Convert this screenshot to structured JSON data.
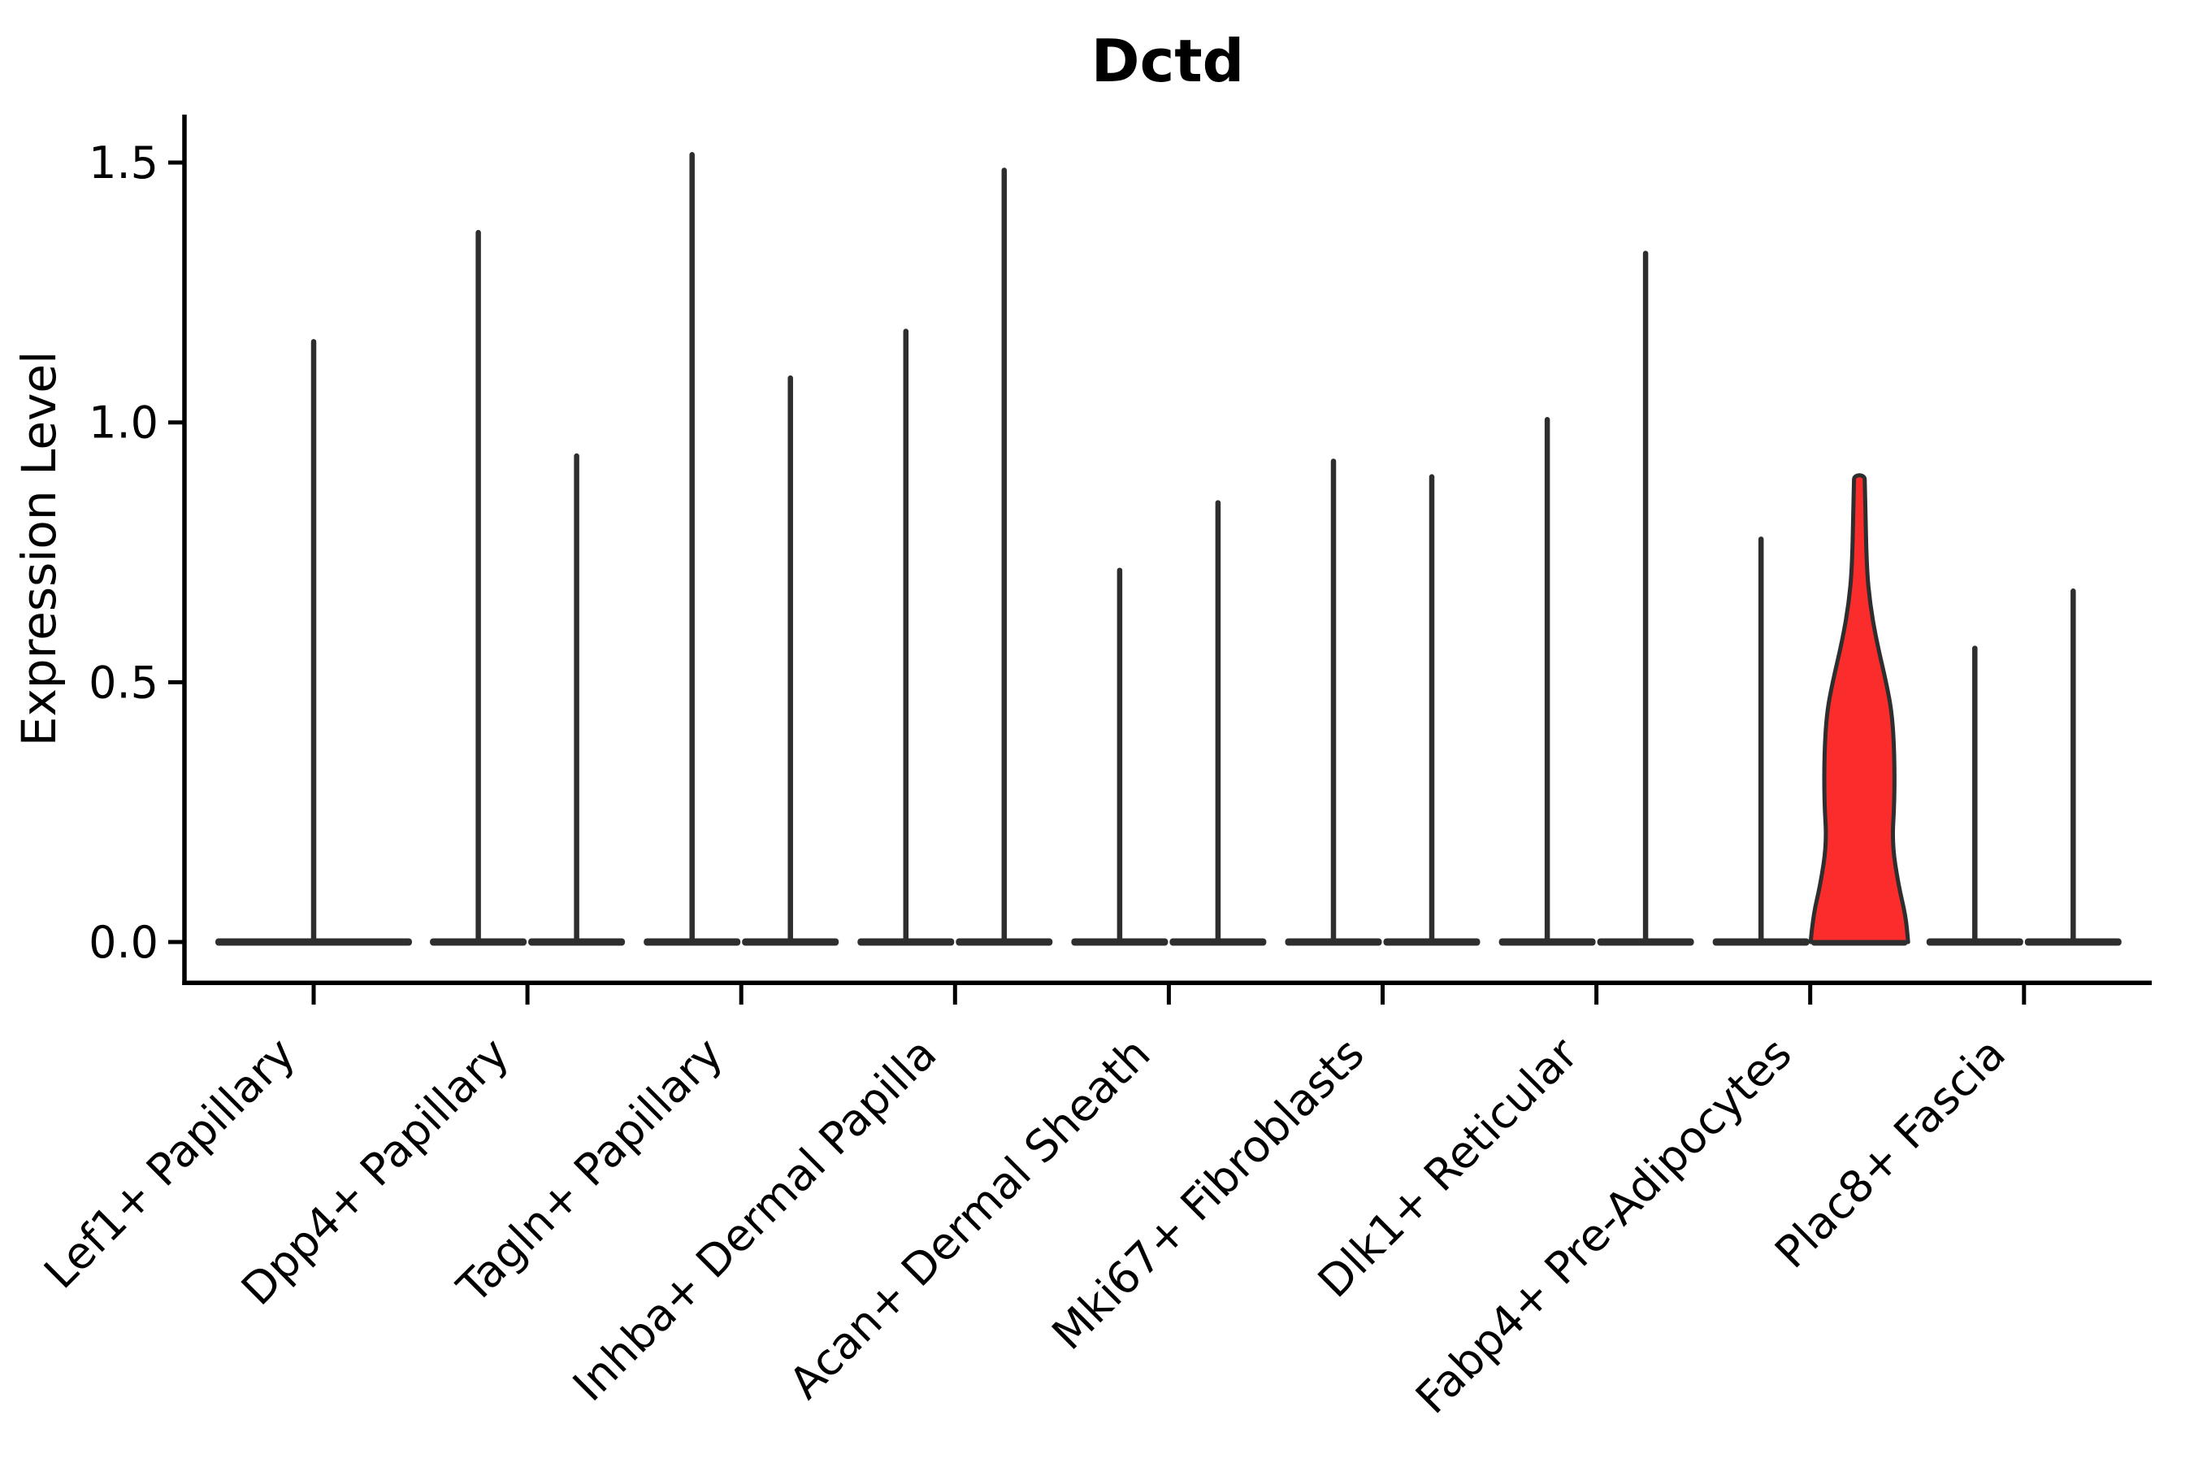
{
  "figure": {
    "title": "Dctd",
    "background": "#ffffff"
  },
  "chart_data": {
    "type": "violin",
    "title": "Dctd",
    "xlabel": "",
    "ylabel": "Expression Level",
    "ylim": [
      -0.08,
      1.59
    ],
    "grid": false,
    "legend": "none",
    "yticks": [
      {
        "value": 0.0,
        "label": "0.0"
      },
      {
        "value": 0.5,
        "label": "0.5"
      },
      {
        "value": 1.0,
        "label": "1.0"
      },
      {
        "value": 1.5,
        "label": "1.5"
      }
    ],
    "colors": {
      "violin_edge": "#2e2e2e",
      "highlight_fill": "#fb2c2c",
      "axis": "#000000",
      "text": "#000000",
      "background": "#ffffff"
    },
    "categories": [
      {
        "label": "Lef1+ Papillary",
        "violins": [
          {
            "slot": "full",
            "max": 1.16,
            "highlighted": false
          }
        ]
      },
      {
        "label": "Dpp4+ Papillary",
        "violins": [
          {
            "slot": "left",
            "max": 1.37,
            "highlighted": false
          },
          {
            "slot": "right",
            "max": 0.94,
            "highlighted": false
          }
        ]
      },
      {
        "label": "Tagln+ Papillary",
        "violins": [
          {
            "slot": "left",
            "max": 1.52,
            "highlighted": false
          },
          {
            "slot": "right",
            "max": 1.09,
            "highlighted": false
          }
        ]
      },
      {
        "label": "Inhba+ Dermal Papilla",
        "violins": [
          {
            "slot": "left",
            "max": 1.18,
            "highlighted": false
          },
          {
            "slot": "right",
            "max": 1.49,
            "highlighted": false
          }
        ]
      },
      {
        "label": "Acan+ Dermal Sheath",
        "violins": [
          {
            "slot": "left",
            "max": 0.72,
            "highlighted": false
          },
          {
            "slot": "right",
            "max": 0.85,
            "highlighted": false
          }
        ]
      },
      {
        "label": "Mki67+ Fibroblasts",
        "violins": [
          {
            "slot": "left",
            "max": 0.93,
            "highlighted": false
          },
          {
            "slot": "right",
            "max": 0.9,
            "highlighted": false
          }
        ]
      },
      {
        "label": "Dlk1+ Reticular",
        "violins": [
          {
            "slot": "left",
            "max": 1.01,
            "highlighted": false
          },
          {
            "slot": "right",
            "max": 1.33,
            "highlighted": false
          }
        ]
      },
      {
        "label": "Fabp4+ Pre-Adipocytes",
        "violins": [
          {
            "slot": "left",
            "max": 0.78,
            "highlighted": false
          },
          {
            "slot": "right",
            "max": 0.89,
            "highlighted": true,
            "fill": "#fb2c2c",
            "profile": [
              [
                0.0,
                1.0
              ],
              [
                0.05,
                0.95
              ],
              [
                0.11,
                0.8
              ],
              [
                0.19,
                0.67
              ],
              [
                0.27,
                0.72
              ],
              [
                0.36,
                0.72
              ],
              [
                0.44,
                0.67
              ],
              [
                0.5,
                0.55
              ],
              [
                0.58,
                0.35
              ],
              [
                0.65,
                0.22
              ],
              [
                0.72,
                0.15
              ],
              [
                0.85,
                0.12
              ],
              [
                0.89,
                0.11
              ]
            ]
          }
        ]
      },
      {
        "label": "Plac8+ Fascia",
        "violins": [
          {
            "slot": "left",
            "max": 0.57,
            "highlighted": false
          },
          {
            "slot": "right",
            "max": 0.68,
            "highlighted": false
          }
        ]
      }
    ]
  }
}
